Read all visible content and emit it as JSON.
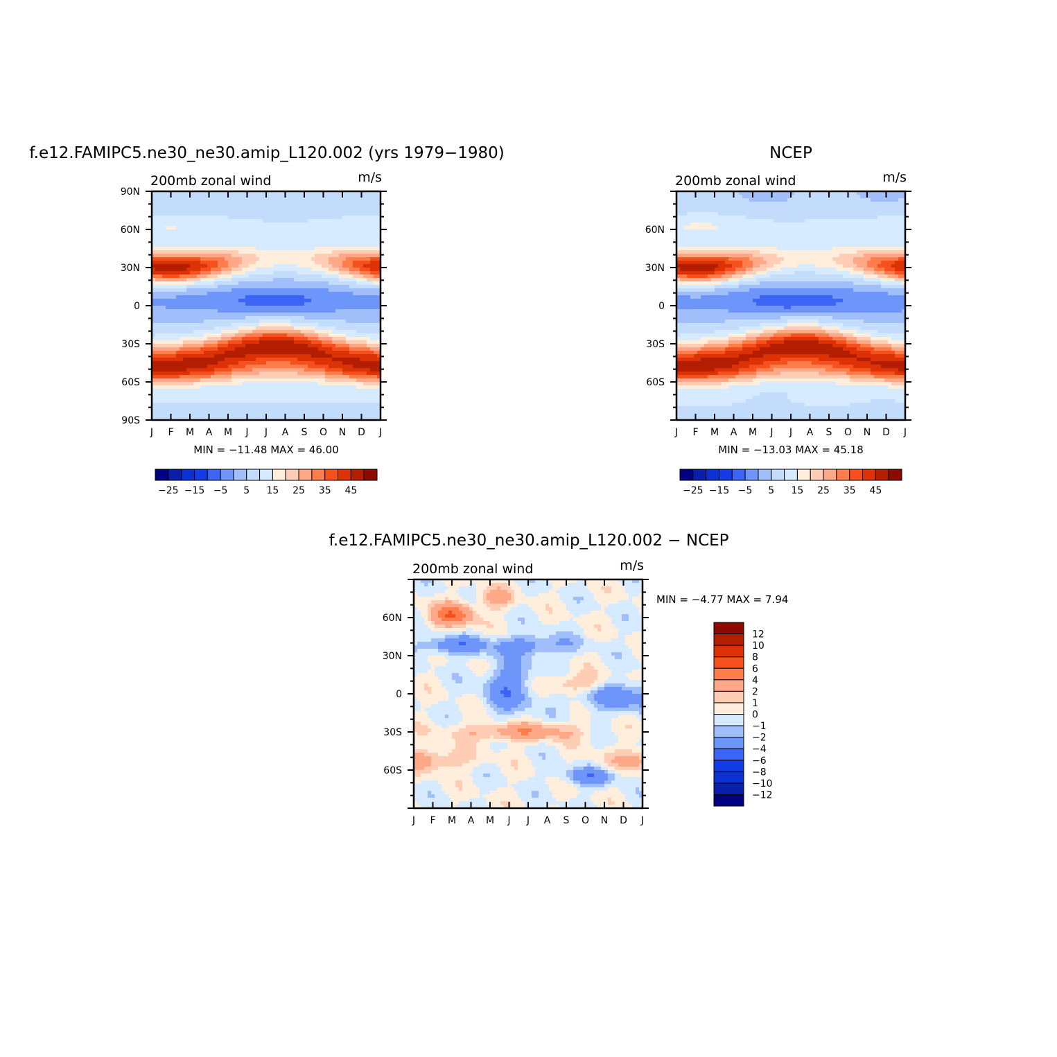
{
  "colors": {
    "bar16": [
      "#000080",
      "#0a1eac",
      "#0a32d2",
      "#143ce6",
      "#3c64f5",
      "#6e96fa",
      "#a0bef9",
      "#c4dcfc",
      "#d6ebff",
      "#ffeedc",
      "#ffcdb4",
      "#ffa887",
      "#ff7d4b",
      "#f5501e",
      "#dc3205",
      "#b41e00",
      "#8c0a00"
    ],
    "diff": [
      "#000080",
      "#0a1eac",
      "#0a32d2",
      "#143ce6",
      "#3c64f5",
      "#6e96fa",
      "#a0bef9",
      "#d6ebff",
      "#ffeedc",
      "#ffcdb4",
      "#ffa887",
      "#ff7d4b",
      "#f5501e",
      "#dc3205",
      "#b41e00",
      "#8c0a00"
    ]
  },
  "chart_data": [
    {
      "type": "heatmap",
      "title": "f.e12.FAMIPC5.ne30_ne30.amip_L120.002 (yrs 1979−1980)",
      "subtitle": "200mb zonal wind",
      "units": "m/s",
      "x": [
        "J",
        "F",
        "M",
        "A",
        "M",
        "J",
        "J",
        "A",
        "S",
        "O",
        "N",
        "D",
        "J"
      ],
      "y_ticks": [
        "90N",
        "60N",
        "30N",
        "0",
        "30S",
        "60S",
        "90S"
      ],
      "ylim": [
        -90,
        90
      ],
      "stats": "MIN = −11.48 MAX =   46.00",
      "colorbar_labels": [
        "−25",
        "−15",
        "−5",
        "5",
        "15",
        "25",
        "35",
        "45"
      ],
      "z_range": [
        -11.48,
        46.0
      ]
    },
    {
      "type": "heatmap",
      "title": "NCEP",
      "subtitle": "200mb zonal wind",
      "units": "m/s",
      "x": [
        "J",
        "F",
        "M",
        "A",
        "M",
        "J",
        "J",
        "A",
        "S",
        "O",
        "N",
        "D",
        "J"
      ],
      "y_ticks": [
        "60N",
        "30N",
        "0",
        "30S",
        "60S"
      ],
      "ylim": [
        -90,
        90
      ],
      "stats": "MIN = −13.03 MAX =   45.18",
      "colorbar_labels": [
        "−25",
        "−15",
        "−5",
        "5",
        "15",
        "25",
        "35",
        "45"
      ],
      "z_range": [
        -13.03,
        45.18
      ]
    },
    {
      "type": "heatmap",
      "title": "f.e12.FAMIPC5.ne30_ne30.amip_L120.002 − NCEP",
      "subtitle": "200mb zonal wind",
      "units": "m/s",
      "x": [
        "J",
        "F",
        "M",
        "A",
        "M",
        "J",
        "J",
        "A",
        "S",
        "O",
        "N",
        "D",
        "J"
      ],
      "y_ticks": [
        "60N",
        "30N",
        "0",
        "30S",
        "60S"
      ],
      "ylim": [
        -90,
        90
      ],
      "stats": "MIN =   −4.77 MAX =     7.94",
      "colorbar_labels": [
        "12",
        "10",
        "8",
        "6",
        "4",
        "2",
        "1",
        "0",
        "−1",
        "−2",
        "−4",
        "−6",
        "−8",
        "−10",
        "−12"
      ],
      "z_range": [
        -4.77,
        7.94
      ]
    }
  ]
}
